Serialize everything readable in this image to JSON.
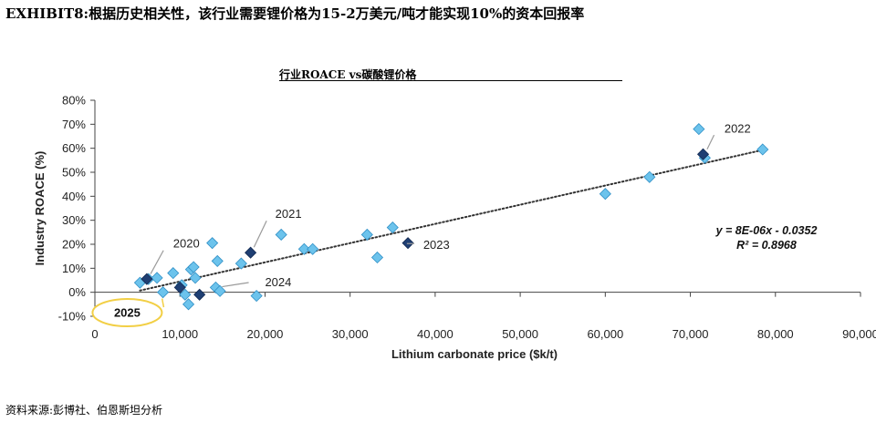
{
  "header": {
    "title": "EXHIBIT8:根据历史相关性，该行业需要锂价格为15-2万美元/吨才能实现10%的资本回报率"
  },
  "footer": {
    "source": "资料来源:彭博社、伯恩斯坦分析"
  },
  "chart_data": {
    "type": "scatter",
    "title": "行业ROACE vs碳酸锂价格",
    "xlabel": "Lithium carbonate price ($k/t)",
    "ylabel": "Industry ROACE (%)",
    "xlim": [
      0,
      90000
    ],
    "ylim": [
      -10,
      80
    ],
    "x_ticks": [
      0,
      10000,
      20000,
      30000,
      40000,
      50000,
      60000,
      70000,
      80000,
      90000
    ],
    "x_tick_labels": [
      "0",
      "10,000",
      "20,000",
      "30,000",
      "40,000",
      "50,000",
      "60,000",
      "70,000",
      "80,000",
      "90,000"
    ],
    "y_ticks": [
      -10,
      0,
      10,
      20,
      30,
      40,
      50,
      60,
      70,
      80
    ],
    "y_tick_labels": [
      "-10%",
      "0%",
      "10%",
      "20%",
      "30%",
      "40%",
      "50%",
      "60%",
      "70%",
      "80%"
    ],
    "grid": false,
    "colors": {
      "point": "#6cc3ec",
      "point_stroke": "#2f8fc6",
      "highlight": "#1f3f73",
      "trendline": "#333333",
      "badge_ring": "#f2cf45"
    },
    "series": [
      {
        "points": [
          [
            5300,
            4
          ],
          [
            6300,
            5.5
          ],
          [
            7300,
            6
          ],
          [
            8000,
            0
          ],
          [
            9200,
            8
          ],
          [
            10200,
            3
          ],
          [
            10600,
            -1
          ],
          [
            11000,
            -5
          ],
          [
            11300,
            9.5
          ],
          [
            11600,
            10.5
          ],
          [
            11800,
            6
          ],
          [
            13800,
            20.5
          ],
          [
            14200,
            2
          ],
          [
            14400,
            13
          ],
          [
            14700,
            0.5
          ],
          [
            17200,
            12
          ],
          [
            19000,
            -1.5
          ],
          [
            21900,
            24
          ],
          [
            24600,
            18
          ],
          [
            25600,
            18
          ],
          [
            32000,
            24
          ],
          [
            33200,
            14.5
          ],
          [
            35000,
            27
          ],
          [
            60000,
            41
          ],
          [
            65200,
            48
          ],
          [
            71000,
            68
          ],
          [
            71700,
            56
          ],
          [
            78500,
            59.5
          ]
        ]
      },
      {
        "points": [
          [
            6100,
            5.5
          ],
          [
            10000,
            2
          ],
          [
            12300,
            -1
          ],
          [
            18300,
            16.5
          ],
          [
            36800,
            20.5
          ],
          [
            71500,
            57.5
          ]
        ]
      }
    ],
    "trendline": {
      "x_range": [
        5300,
        78500
      ],
      "slope_per_unit": 0.0008,
      "intercept_pct": -3.52,
      "equation": "y = 8E-06x - 0.0352",
      "r_squared": "R² = 0.8968"
    },
    "annotations": [
      {
        "label": "2020",
        "point": [
          6100,
          5.5
        ],
        "label_at": [
          9200,
          20.5
        ]
      },
      {
        "label": "2021",
        "point": [
          18300,
          16.5
        ],
        "label_at": [
          21200,
          33
        ]
      },
      {
        "label": "2022",
        "point": [
          71500,
          57.5
        ],
        "label_at": [
          74000,
          68.5
        ]
      },
      {
        "label": "2023",
        "point": [
          36800,
          20.5
        ],
        "label_at": [
          38600,
          20
        ]
      },
      {
        "label": "2024",
        "point": [
          14200,
          2
        ],
        "label_at": [
          20000,
          4.5
        ]
      },
      {
        "label": "2025",
        "point": [
          7900,
          -1.5
        ],
        "label_at": [
          3800,
          -8.5
        ],
        "style": "badge"
      }
    ]
  }
}
